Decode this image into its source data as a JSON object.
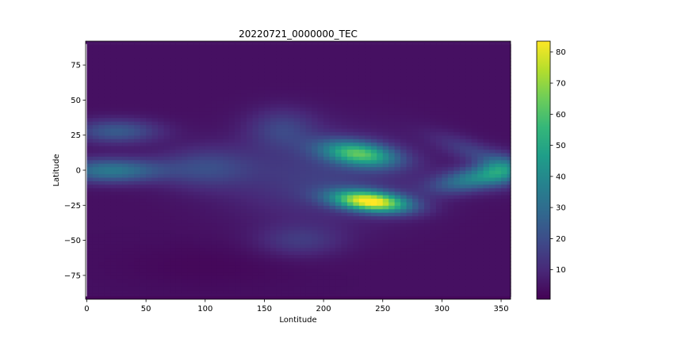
{
  "chart_data": {
    "type": "heatmap",
    "title": "20220721_0000000_TEC",
    "xlabel": "Lontitude",
    "ylabel": "Latitude",
    "xlim": [
      -1,
      358
    ],
    "ylim": [
      -92,
      92
    ],
    "x_ticks": [
      0,
      50,
      100,
      150,
      200,
      250,
      300,
      350
    ],
    "y_ticks": [
      75,
      50,
      25,
      0,
      -25,
      -50,
      -75
    ],
    "colormap": "viridis",
    "colorbar": {
      "min": 0.5,
      "max": 83.5,
      "ticks": [
        80,
        70,
        60,
        50,
        40,
        30,
        20,
        10
      ]
    },
    "grid": false,
    "grid_resolution": {
      "lon_step": 5,
      "lat_step": 2.5
    },
    "features": [
      {
        "kind": "peak",
        "lon": 240,
        "lat": -22,
        "value": 83
      },
      {
        "kind": "peak",
        "lon": 230,
        "lat": 12,
        "value": 62
      },
      {
        "kind": "band",
        "lon_range": [
          0,
          120
        ],
        "lat": 0,
        "value": 35
      },
      {
        "kind": "band",
        "lon_range": [
          0,
          60
        ],
        "lat": 28,
        "value": 24
      },
      {
        "kind": "band",
        "lon_range": [
          300,
          358
        ],
        "lat": -5,
        "value": 38
      },
      {
        "kind": "trough",
        "lon_range": [
          60,
          180
        ],
        "lat": -70,
        "value": 4
      }
    ]
  }
}
